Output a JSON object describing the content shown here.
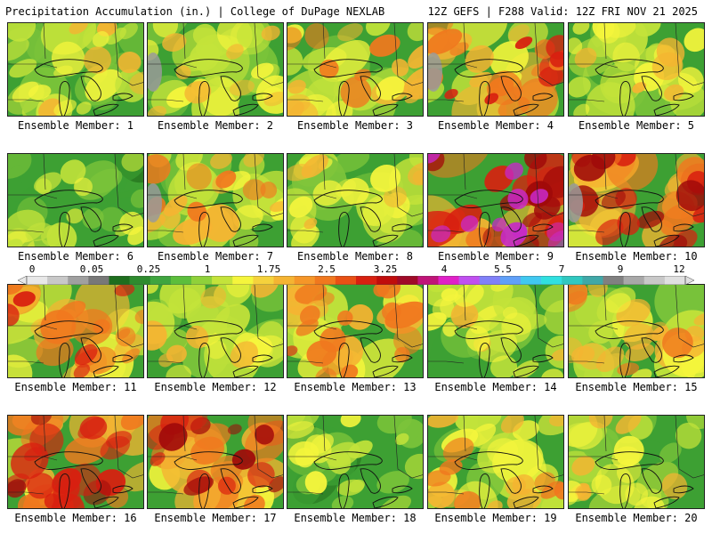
{
  "header": {
    "left_text": "Precipitation Accumulation (in.) | College of DuPage NEXLAB",
    "right_text": "12Z GEFS | F288 Valid: 12Z FRI NOV 21 2025"
  },
  "members": [
    {
      "label": "Ensemble Member: 1",
      "intensity": 0.3
    },
    {
      "label": "Ensemble Member: 2",
      "intensity": 0.25
    },
    {
      "label": "Ensemble Member: 3",
      "intensity": 0.45
    },
    {
      "label": "Ensemble Member: 4",
      "intensity": 0.55
    },
    {
      "label": "Ensemble Member: 5",
      "intensity": 0.35
    },
    {
      "label": "Ensemble Member: 6",
      "intensity": 0.15
    },
    {
      "label": "Ensemble Member: 7",
      "intensity": 0.45
    },
    {
      "label": "Ensemble Member: 8",
      "intensity": 0.25
    },
    {
      "label": "Ensemble Member: 9",
      "intensity": 0.85
    },
    {
      "label": "Ensemble Member: 10",
      "intensity": 0.7
    },
    {
      "label": "Ensemble Member: 11",
      "intensity": 0.5
    },
    {
      "label": "Ensemble Member: 12",
      "intensity": 0.35
    },
    {
      "label": "Ensemble Member: 13",
      "intensity": 0.55
    },
    {
      "label": "Ensemble Member: 14",
      "intensity": 0.35
    },
    {
      "label": "Ensemble Member: 15",
      "intensity": 0.4
    },
    {
      "label": "Ensemble Member: 16",
      "intensity": 0.7
    },
    {
      "label": "Ensemble Member: 17",
      "intensity": 0.75
    },
    {
      "label": "Ensemble Member: 18",
      "intensity": 0.2
    },
    {
      "label": "Ensemble Member: 19",
      "intensity": 0.4
    },
    {
      "label": "Ensemble Member: 20",
      "intensity": 0.25
    }
  ],
  "colorbar": {
    "tick_labels": [
      "0",
      "0.05",
      "0.25",
      "1",
      "1.75",
      "2.5",
      "3.25",
      "4",
      "5.5",
      "7",
      "9",
      "12"
    ],
    "colors": [
      "#e8e8e8",
      "#c8c8c8",
      "#a0a0a0",
      "#787878",
      "#1e6e1e",
      "#2e8b2e",
      "#3fa53f",
      "#5cbe3c",
      "#8fd13a",
      "#c4e33a",
      "#f5f53c",
      "#f5d23c",
      "#f5b432",
      "#f59628",
      "#f0781e",
      "#e85014",
      "#d82010",
      "#c00c0c",
      "#a00a28",
      "#c01478",
      "#e020c8",
      "#c050f0",
      "#8080f8",
      "#60a0f8",
      "#40c8f0",
      "#30e0e0",
      "#30c8c0",
      "#40a8a8",
      "#808080",
      "#a8a8a8",
      "#c8c8c8",
      "#e0e0e0"
    ]
  },
  "palette": {
    "green_dark": "#2a7a22",
    "green": "#3da033",
    "green_light": "#7cc43a",
    "yellow_green": "#c4e33a",
    "yellow": "#f5f53c",
    "orange": "#f5b432",
    "red_orange": "#f0781e",
    "red": "#d82010",
    "dark_red": "#a00a0a",
    "magenta": "#c828c8",
    "gray": "#9a9a9a"
  }
}
